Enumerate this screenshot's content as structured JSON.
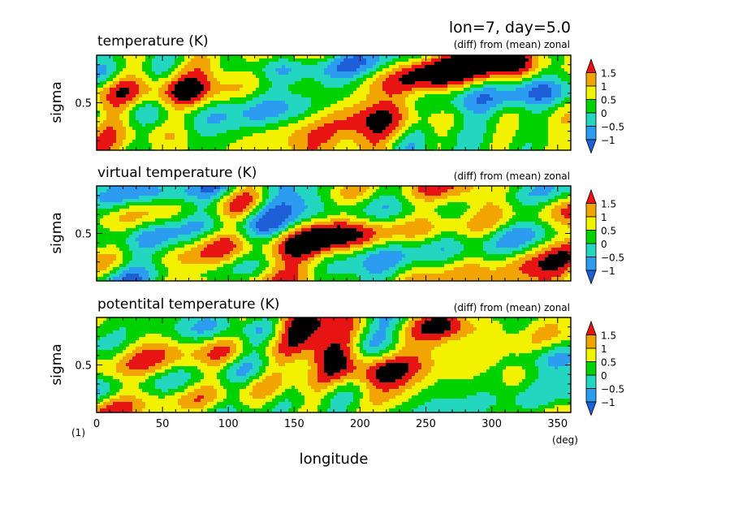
{
  "header": {
    "title": "lon=7, day=5.0"
  },
  "footer": {
    "xlabel": "longitude",
    "xunit": "(deg)",
    "ylabel_unit": "(1)"
  },
  "colorbar": {
    "levels": [
      -1.5,
      -1,
      -0.5,
      0,
      0.5,
      1,
      1.5
    ],
    "tick_labels": [
      "1.5",
      "1",
      "0.5",
      "0",
      "−0.5",
      "−1"
    ],
    "colors": [
      "#1e5fd8",
      "#2b9cf0",
      "#22d6c0",
      "#00d200",
      "#f2f200",
      "#f2a400",
      "#e81414"
    ]
  },
  "chart_data": [
    {
      "type": "heatmap",
      "title": "temperature (K)",
      "subtitle": "(diff) from (mean) zonal",
      "xlabel": "longitude",
      "ylabel": "sigma",
      "xlim": [
        0,
        360
      ],
      "x_ticks": [
        0,
        50,
        100,
        150,
        200,
        250,
        300,
        350
      ],
      "ylim": [
        0,
        1
      ],
      "y_ticks": [
        0.5
      ],
      "features": [
        {
          "x": 130,
          "y": 0.1,
          "value": -1.0
        },
        {
          "x": 250,
          "y": 0.12,
          "value": 1.1
        },
        {
          "x": 310,
          "y": 0.08,
          "value": 1.6
        },
        {
          "x": 190,
          "y": 0.55,
          "value": 0.9
        },
        {
          "x": 75,
          "y": 0.45,
          "value": 0.7
        },
        {
          "x": 45,
          "y": 0.85,
          "value": 0.6
        },
        {
          "x": 30,
          "y": 0.5,
          "value": -0.4
        },
        {
          "x": 280,
          "y": 0.5,
          "value": -0.6
        },
        {
          "x": 340,
          "y": 0.4,
          "value": -0.8
        }
      ]
    },
    {
      "type": "heatmap",
      "title": "virtual temperature (K)",
      "subtitle": "(diff) from (mean) zonal",
      "xlabel": "longitude",
      "ylabel": "sigma",
      "xlim": [
        0,
        360
      ],
      "x_ticks": [
        0,
        50,
        100,
        150,
        200,
        250,
        300,
        350
      ],
      "ylim": [
        0,
        1
      ],
      "y_ticks": [
        0.5
      ],
      "features": [
        {
          "x": 150,
          "y": 0.12,
          "value": -1.1
        },
        {
          "x": 50,
          "y": 0.1,
          "value": -0.9
        },
        {
          "x": 280,
          "y": 0.1,
          "value": 1.4
        },
        {
          "x": 185,
          "y": 0.5,
          "value": 0.9
        },
        {
          "x": 75,
          "y": 0.5,
          "value": 0.6
        },
        {
          "x": 30,
          "y": 0.4,
          "value": -0.3
        },
        {
          "x": 330,
          "y": 0.45,
          "value": -0.6
        }
      ]
    },
    {
      "type": "heatmap",
      "title": "potentital temperature (K)",
      "subtitle": "(diff) from (mean) zonal",
      "xlabel": "longitude",
      "ylabel": "sigma",
      "xlim": [
        0,
        360
      ],
      "x_ticks": [
        0,
        50,
        100,
        150,
        200,
        250,
        300,
        350
      ],
      "ylim": [
        0,
        1
      ],
      "y_ticks": [
        0.5
      ],
      "features": [
        {
          "x": 150,
          "y": 0.04,
          "value": 1.6
        },
        {
          "x": 110,
          "y": 0.12,
          "value": -1.2
        },
        {
          "x": 180,
          "y": 0.4,
          "value": 1.4
        },
        {
          "x": 200,
          "y": 0.55,
          "value": 1.5
        },
        {
          "x": 270,
          "y": 0.12,
          "value": 1.5
        },
        {
          "x": 340,
          "y": 0.4,
          "value": -1.0
        },
        {
          "x": 30,
          "y": 0.25,
          "value": 0.6
        }
      ]
    }
  ]
}
